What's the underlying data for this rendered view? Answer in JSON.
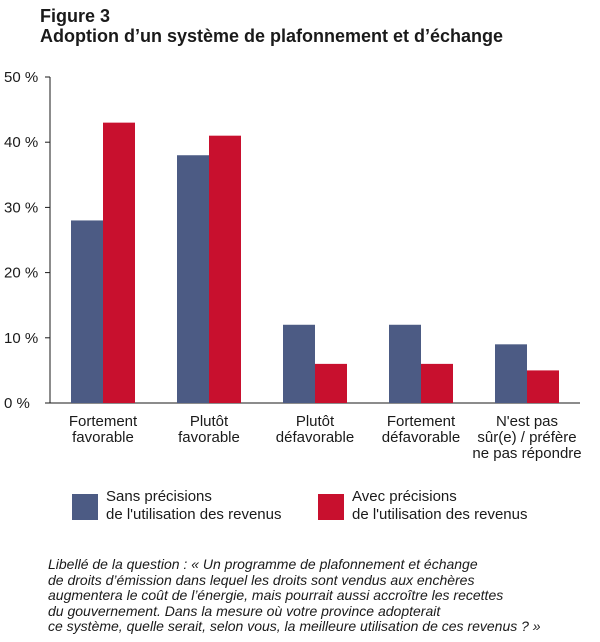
{
  "figure": {
    "label": "Figure 3",
    "title": "Adoption d’un système de plafonnement et d’échange"
  },
  "colors": {
    "series_1": "#4c5b84",
    "series_2": "#c8102e"
  },
  "legend": [
    {
      "lines": [
        "Sans précisions",
        "de l'utilisation des revenus"
      ]
    },
    {
      "lines": [
        "Avec précisions",
        "de l'utilisation des revenus"
      ]
    }
  ],
  "note": [
    "Libellé de la question : « Un programme de plafonnement et échange",
    "de droits d’émission dans lequel les droits sont vendus aux enchères",
    "augmentera le coût de l’énergie, mais pourrait aussi accroître les recettes",
    "du gouvernement. Dans la mesure où votre province adopterait",
    "ce système, quelle serait, selon vous, la meilleure utilisation de ces revenus ? »"
  ],
  "chart_data": {
    "type": "bar",
    "categories": [
      [
        "Fortement",
        "favorable"
      ],
      [
        "Plutôt",
        "favorable"
      ],
      [
        "Plutôt",
        "défavorable"
      ],
      [
        "Fortement",
        "défavorable"
      ],
      [
        "N'est pas",
        "sûr(e) / préfère",
        "ne pas répondre"
      ]
    ],
    "series": [
      {
        "name": "Sans précisions de l'utilisation des revenus",
        "values": [
          28,
          38,
          12,
          12,
          9
        ]
      },
      {
        "name": "Avec précisions de l'utilisation des revenus",
        "values": [
          43,
          41,
          6,
          6,
          5
        ]
      }
    ],
    "ylim": [
      0,
      50
    ],
    "yticks": [
      0,
      10,
      20,
      30,
      40,
      50
    ],
    "ytick_labels": [
      "0 %",
      "10 %",
      "20 %",
      "30 %",
      "40 %",
      "50 %"
    ],
    "grid": false,
    "legend_position": "bottom"
  }
}
